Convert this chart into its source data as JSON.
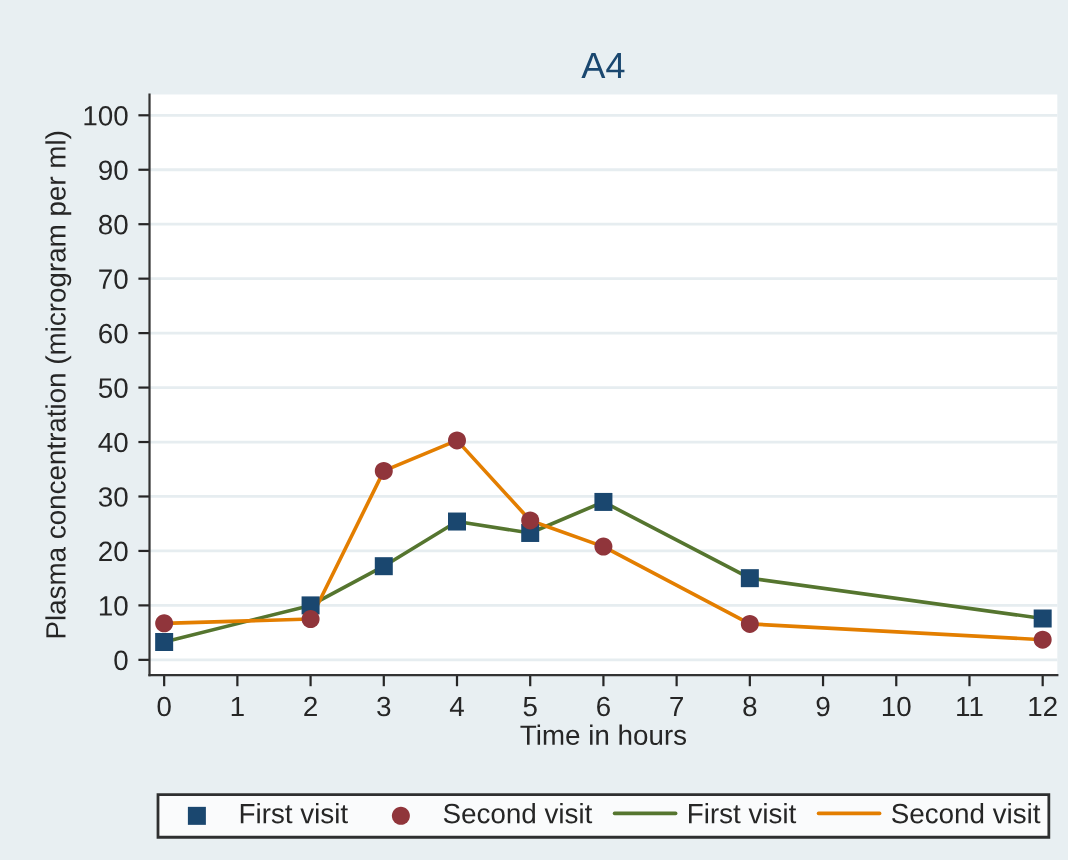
{
  "chart_data": {
    "type": "line",
    "title": "A4",
    "xlabel": "Time in hours",
    "ylabel": "Plasma concentration (microgram per ml)",
    "x": [
      0,
      2,
      3,
      4,
      5,
      6,
      8,
      12
    ],
    "series": [
      {
        "name": "First visit",
        "type": "scatter",
        "marker": "square",
        "color": "#1a476f",
        "values": [
          3.3,
          10,
          17.2,
          25.4,
          23.3,
          29,
          15,
          7.6
        ]
      },
      {
        "name": "Second visit",
        "type": "scatter",
        "marker": "circle",
        "color": "#90353b",
        "values": [
          6.7,
          7.5,
          34.7,
          40.3,
          25.6,
          20.8,
          6.6,
          3.7
        ]
      },
      {
        "name": "First visit",
        "color": "#55752f",
        "values": [
          3.3,
          10,
          17.2,
          25.4,
          23.3,
          29,
          15,
          7.6
        ]
      },
      {
        "name": "Second visit",
        "color": "#e37e00",
        "values": [
          6.7,
          7.5,
          34.7,
          40.3,
          25.6,
          20.8,
          6.6,
          3.7
        ]
      }
    ],
    "xlim": [
      -0.2,
      12.2
    ],
    "ylim": [
      -2.8,
      103.8
    ],
    "xticks": [
      0,
      1,
      2,
      3,
      4,
      5,
      6,
      7,
      8,
      9,
      10,
      11,
      12
    ],
    "yticks": [
      0,
      10,
      20,
      30,
      40,
      50,
      60,
      70,
      80,
      90,
      100
    ],
    "grid": "y",
    "legend": "bottom"
  }
}
